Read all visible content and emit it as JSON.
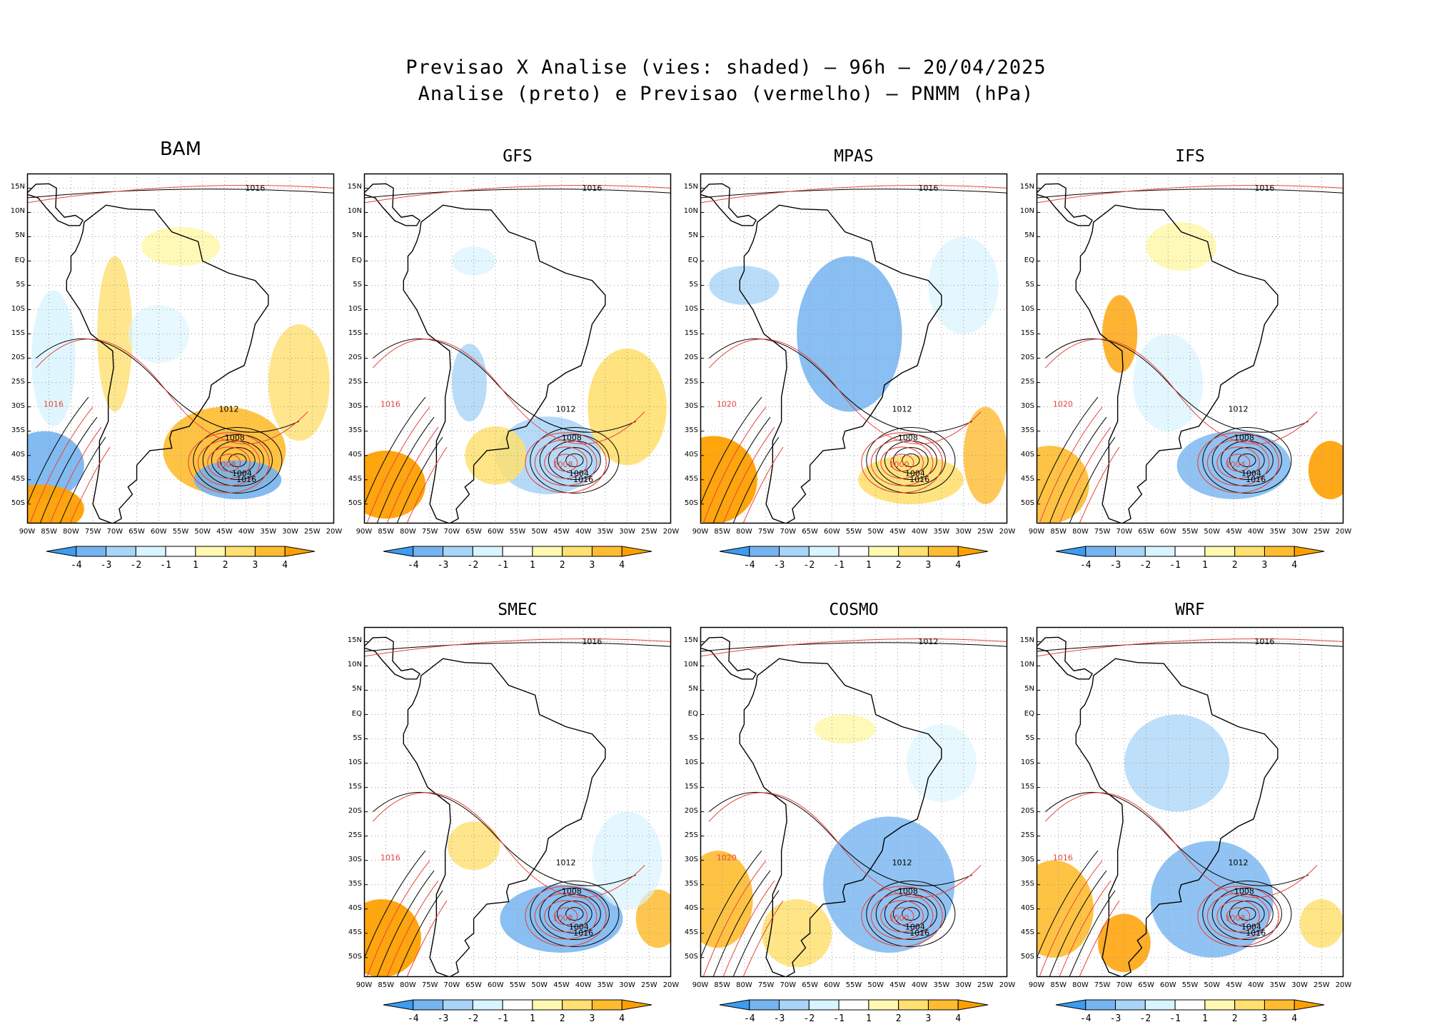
{
  "figure": {
    "title_line1": "Previsao X Analise (vies: shaded) – 96h – 20/04/2025",
    "title_line2": "Analise (preto) e Previsao (vermelho) – PNMM (hPa)"
  },
  "lat_labels": [
    "15N",
    "10N",
    "5N",
    "EQ",
    "5S",
    "10S",
    "15S",
    "20S",
    "25S",
    "30S",
    "35S",
    "40S",
    "45S",
    "50S"
  ],
  "lon_labels": [
    "90W",
    "85W",
    "80W",
    "75W",
    "70W",
    "65W",
    "60W",
    "55W",
    "50W",
    "45W",
    "40W",
    "35W",
    "30W",
    "25W",
    "20W"
  ],
  "colorbar": {
    "ticks": [
      "-4",
      "-3",
      "-2",
      "-1",
      "1",
      "2",
      "3",
      "4"
    ],
    "colors": [
      "#3c9cf0",
      "#74b4f0",
      "#a8d4f8",
      "#d8f4ff",
      "#ffffff",
      "#fff8b0",
      "#ffe070",
      "#ffbc30",
      "#ffa000"
    ]
  },
  "contour_colors": {
    "analysis": "#000000",
    "forecast": "#e8443c"
  },
  "panels": [
    {
      "id": "bam",
      "title": "BAM",
      "low_center_analysis": "1004",
      "low_center_forecast": "1008",
      "labels": {
        "north": "1016",
        "mid_atlantic": "1012",
        "south_atlantic": "1016",
        "pacific": "1016",
        "ring": "1008"
      }
    },
    {
      "id": "gfs",
      "title": "GFS",
      "low_center_analysis": "1004",
      "low_center_forecast": "1008",
      "labels": {
        "north": "1016",
        "mid_atlantic": "1012",
        "south_atlantic": "1016",
        "pacific": "1016",
        "ring": "1008"
      }
    },
    {
      "id": "mpas",
      "title": "MPAS",
      "low_center_analysis": "1004",
      "low_center_forecast": "1000",
      "labels": {
        "north": "1016",
        "mid_atlantic": "1012",
        "south_atlantic": "1016",
        "pacific": "1020",
        "ring": "1008"
      }
    },
    {
      "id": "ifs",
      "title": "IFS",
      "low_center_analysis": "1004",
      "low_center_forecast": "1004",
      "labels": {
        "north": "1016",
        "mid_atlantic": "1012",
        "south_atlantic": "1016",
        "pacific": "1020",
        "ring": "1008"
      }
    },
    {
      "id": "smec",
      "title": "SMEC",
      "low_center_analysis": "1004",
      "low_center_forecast": "1008",
      "labels": {
        "north": "1016",
        "mid_atlantic": "1012",
        "south_atlantic": "1016",
        "pacific": "1016",
        "ring": "1008"
      }
    },
    {
      "id": "cosmo",
      "title": "COSMO",
      "low_center_analysis": "1004",
      "low_center_forecast": "1000",
      "labels": {
        "north": "1012",
        "mid_atlantic": "1012",
        "south_atlantic": "1016",
        "pacific": "1020",
        "ring": "1008"
      }
    },
    {
      "id": "wrf",
      "title": "WRF",
      "low_center_analysis": "1004",
      "low_center_forecast": "1008",
      "labels": {
        "north": "1016",
        "mid_atlantic": "1012",
        "south_atlantic": "1016",
        "pacific": "1016",
        "ring": "1008"
      }
    }
  ]
}
